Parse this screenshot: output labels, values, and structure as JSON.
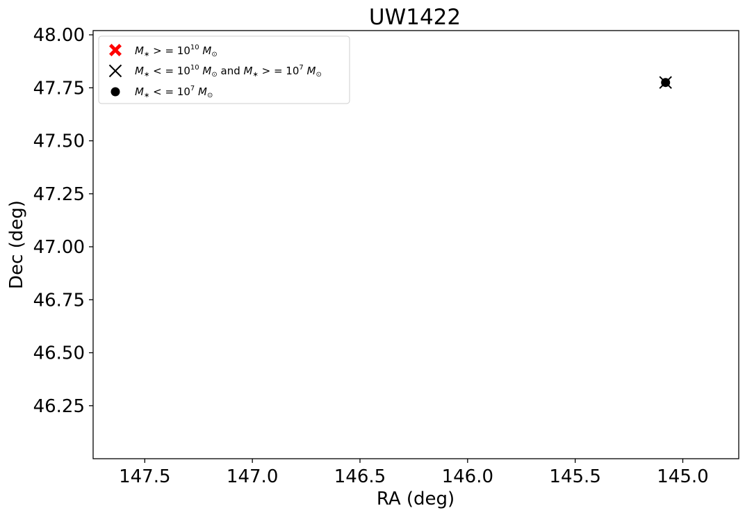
{
  "chart_data": {
    "type": "scatter",
    "title": "UW1422",
    "xlabel": "RA (deg)",
    "ylabel": "Dec (deg)",
    "xlim": [
      147.74,
      144.74
    ],
    "ylim": [
      46.0,
      48.02
    ],
    "x_inverted": true,
    "xticks": [
      147.5,
      147.0,
      146.5,
      146.0,
      145.5,
      145.0
    ],
    "xtick_labels": [
      "147.5",
      "147.0",
      "146.5",
      "146.0",
      "145.5",
      "145.0"
    ],
    "yticks": [
      46.25,
      46.5,
      46.75,
      47.0,
      47.25,
      47.5,
      47.75,
      48.0
    ],
    "ytick_labels": [
      "46.25",
      "46.50",
      "46.75",
      "47.00",
      "47.25",
      "47.50",
      "47.75",
      "48.00"
    ],
    "grid": false,
    "legend_position": "top-left",
    "series": [
      {
        "marker": "filled-x",
        "color": "#ff0000",
        "legend_label": "M_* >= 10^10 M_sun",
        "points": []
      },
      {
        "marker": "x",
        "color": "#000000",
        "legend_label": "M_* <= 10^10 M_sun and M_* >= 10^7 M_sun",
        "points": [
          {
            "x": 145.08,
            "y": 47.775
          }
        ]
      },
      {
        "marker": "circle",
        "color": "#000000",
        "legend_label": "M_* <= 10^7 M_sun",
        "points": [
          {
            "x": 145.08,
            "y": 47.775
          }
        ]
      }
    ]
  }
}
